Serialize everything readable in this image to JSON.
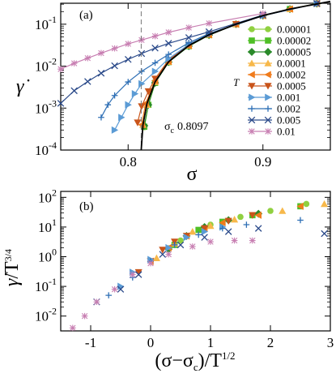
{
  "chart_data": [
    {
      "panel_label": "(a)",
      "type": "line",
      "xlabel": "σ",
      "ylabel": "γ̇",
      "xlim": [
        0.75,
        0.95
      ],
      "ylim_log10": [
        -4,
        -0.5
      ],
      "log_y": true,
      "x_ticks": [
        0.8,
        0.9
      ],
      "x_tick_labels": [
        "0.8",
        "0.9"
      ],
      "y_ticks_log10": [
        -4,
        -3,
        -2,
        -1
      ],
      "y_tick_labels": [
        "10^-4",
        "10^-3",
        "10^-2",
        "10^-1"
      ],
      "legend_title": "T",
      "legend_position": "right",
      "annotation": {
        "prefix": "σ",
        "subscript": "c",
        "value": "0.8097"
      },
      "critical_sigma": 0.8097,
      "series": [
        {
          "name": "0.00001",
          "color": "#90d040",
          "marker": "circle",
          "x": [
            0.812,
            0.815,
            0.82,
            0.83,
            0.845,
            0.86,
            0.88,
            0.9,
            0.92,
            0.94
          ],
          "y": [
            0.00035,
            0.0012,
            0.004,
            0.0125,
            0.03,
            0.055,
            0.1,
            0.16,
            0.23,
            0.31
          ]
        },
        {
          "name": "0.00002",
          "color": "#4fbf26",
          "marker": "square",
          "x": [
            0.812,
            0.815,
            0.82,
            0.83,
            0.845,
            0.86,
            0.88,
            0.9,
            0.92,
            0.94
          ],
          "y": [
            0.00036,
            0.0012,
            0.004,
            0.0125,
            0.03,
            0.055,
            0.1,
            0.16,
            0.23,
            0.31
          ]
        },
        {
          "name": "0.00005",
          "color": "#2a8a2a",
          "marker": "diamond",
          "x": [
            0.812,
            0.815,
            0.82,
            0.83,
            0.845,
            0.86,
            0.88,
            0.9,
            0.92,
            0.94
          ],
          "y": [
            0.00038,
            0.0012,
            0.004,
            0.0125,
            0.03,
            0.055,
            0.1,
            0.16,
            0.23,
            0.31
          ]
        },
        {
          "name": "0.0001",
          "color": "#f7b84a",
          "marker": "triangle-up",
          "x": [
            0.811,
            0.814,
            0.82,
            0.83,
            0.845,
            0.86,
            0.88,
            0.9,
            0.92,
            0.94
          ],
          "y": [
            0.0004,
            0.0012,
            0.0042,
            0.0128,
            0.031,
            0.056,
            0.1,
            0.16,
            0.23,
            0.31
          ]
        },
        {
          "name": "0.0002",
          "color": "#f07b1c",
          "marker": "triangle-left",
          "x": [
            0.81,
            0.813,
            0.82,
            0.83,
            0.845,
            0.86,
            0.88,
            0.9,
            0.92,
            0.94
          ],
          "y": [
            0.0004,
            0.0013,
            0.0045,
            0.013,
            0.031,
            0.056,
            0.1,
            0.16,
            0.23,
            0.31
          ]
        },
        {
          "name": "0.0005",
          "color": "#c9541a",
          "marker": "triangle-down",
          "x": [
            0.807,
            0.81,
            0.815,
            0.82,
            0.83,
            0.845,
            0.86,
            0.88,
            0.9,
            0.94
          ],
          "y": [
            0.00045,
            0.0011,
            0.0025,
            0.005,
            0.014,
            0.032,
            0.057,
            0.1,
            0.16,
            0.31
          ]
        },
        {
          "name": "0.001",
          "color": "#5b9bd5",
          "marker": "triangle-right",
          "x": [
            0.79,
            0.795,
            0.8,
            0.805,
            0.81,
            0.82,
            0.83,
            0.845,
            0.86,
            0.9,
            0.94
          ],
          "y": [
            0.0003,
            0.0006,
            0.0012,
            0.0022,
            0.0038,
            0.0075,
            0.015,
            0.033,
            0.058,
            0.16,
            0.31
          ]
        },
        {
          "name": "0.002",
          "color": "#2e6fb5",
          "marker": "plus",
          "x": [
            0.78,
            0.785,
            0.79,
            0.8,
            0.81,
            0.82,
            0.83,
            0.845,
            0.86,
            0.9,
            0.94
          ],
          "y": [
            0.0006,
            0.0012,
            0.002,
            0.0042,
            0.0075,
            0.012,
            0.019,
            0.036,
            0.06,
            0.16,
            0.31
          ]
        },
        {
          "name": "0.005",
          "color": "#2b4a8a",
          "marker": "cross",
          "x": [
            0.75,
            0.76,
            0.77,
            0.78,
            0.79,
            0.8,
            0.81,
            0.82,
            0.83,
            0.845,
            0.86,
            0.9,
            0.94
          ],
          "y": [
            0.0013,
            0.0026,
            0.0043,
            0.0068,
            0.0102,
            0.0145,
            0.02,
            0.027,
            0.035,
            0.048,
            0.066,
            0.165,
            0.31
          ]
        },
        {
          "name": "0.01",
          "color": "#c87fb2",
          "marker": "star",
          "x": [
            0.75,
            0.76,
            0.77,
            0.78,
            0.79,
            0.8,
            0.81,
            0.82,
            0.83,
            0.845,
            0.86,
            0.9,
            0.94
          ],
          "y": [
            0.0085,
            0.0117,
            0.0155,
            0.0205,
            0.0265,
            0.034,
            0.042,
            0.052,
            0.064,
            0.083,
            0.105,
            0.18,
            0.32
          ]
        }
      ],
      "fit_curve": {
        "name": "",
        "color": "#000000",
        "x": [
          0.8097,
          0.811,
          0.814,
          0.82,
          0.83,
          0.845,
          0.86,
          0.88,
          0.9,
          0.92,
          0.95
        ],
        "y": [
          0.0001,
          0.0004,
          0.0013,
          0.0042,
          0.0127,
          0.031,
          0.056,
          0.1,
          0.16,
          0.23,
          0.35
        ]
      }
    },
    {
      "panel_label": "(b)",
      "type": "scatter",
      "xlabel": "(σ−σc)/T^1/2",
      "ylabel": "γ̇/T^3/4",
      "xlim": [
        -1.5,
        3
      ],
      "ylim_log10": [
        -2.5,
        2.2
      ],
      "log_y": true,
      "x_ticks": [
        -1,
        0,
        1,
        2,
        3
      ],
      "x_tick_labels": [
        "-1",
        "0",
        "1",
        "2",
        "3"
      ],
      "y_ticks_log10": [
        -2,
        -1,
        0,
        1,
        2
      ],
      "y_tick_labels": [
        "10^-2",
        "10^-1",
        "10^0",
        "10^1",
        "10^2"
      ],
      "series": [
        {
          "name": "0.00001",
          "color": "#90d040",
          "marker": "circle",
          "x": [
            0.5,
            1.0,
            1.5,
            2.0,
            2.6
          ],
          "y": [
            3.5,
            12,
            22,
            35,
            60
          ]
        },
        {
          "name": "0.00002",
          "color": "#4fbf26",
          "marker": "square",
          "x": [
            0.4,
            0.8,
            1.2,
            1.7,
            2.5
          ],
          "y": [
            2.5,
            8,
            15,
            25,
            50
          ]
        },
        {
          "name": "0.00005",
          "color": "#2a8a2a",
          "marker": "diamond",
          "x": [
            0.3,
            0.6,
            0.9,
            1.3,
            1.8
          ],
          "y": [
            1.8,
            5,
            10,
            17,
            28
          ]
        },
        {
          "name": "0.0001",
          "color": "#f7b84a",
          "marker": "triangle-up",
          "x": [
            0.1,
            0.4,
            0.7,
            1.0,
            1.4,
            2.2,
            2.9
          ],
          "y": [
            0.9,
            2.8,
            7,
            11,
            18,
            35,
            60
          ]
        },
        {
          "name": "0.0002",
          "color": "#f07b1c",
          "marker": "triangle-left",
          "x": [
            0.0,
            0.3,
            0.6,
            0.9,
            1.2,
            1.8,
            2.5
          ],
          "y": [
            0.7,
            2,
            5,
            9,
            14,
            25,
            50
          ]
        },
        {
          "name": "0.0005",
          "color": "#c9541a",
          "marker": "triangle-down",
          "x": [
            -0.2,
            0.0,
            0.2,
            0.4,
            0.6,
            0.9,
            1.3,
            1.7
          ],
          "y": [
            0.3,
            0.7,
            1.7,
            3.2,
            5,
            9,
            16,
            25
          ]
        },
        {
          "name": "0.001",
          "color": "#5b9bd5",
          "marker": "triangle-right",
          "x": [
            -0.5,
            -0.3,
            0.0,
            0.3,
            0.6,
            0.9,
            1.2
          ],
          "y": [
            0.1,
            0.3,
            0.8,
            2,
            4.5,
            7,
            10
          ]
        },
        {
          "name": "0.002",
          "color": "#2e6fb5",
          "marker": "plus",
          "x": [
            -0.7,
            -0.3,
            0.0,
            0.4,
            0.8,
            1.2,
            1.6,
            2.5
          ],
          "y": [
            0.05,
            0.2,
            0.7,
            2.5,
            5.5,
            9,
            12,
            17
          ]
        },
        {
          "name": "0.005",
          "color": "#2b4a8a",
          "marker": "cross",
          "x": [
            -0.9,
            -0.5,
            -0.2,
            0.2,
            0.5,
            0.9,
            1.3,
            1.8,
            2.9
          ],
          "y": [
            0.03,
            0.08,
            0.25,
            1.2,
            2.5,
            4.5,
            7,
            9,
            6
          ]
        },
        {
          "name": "0.01",
          "color": "#c87fb2",
          "marker": "star",
          "x": [
            -1.3,
            -1.1,
            -0.9,
            -0.6,
            -0.3,
            0.0,
            0.3,
            0.7,
            1.0,
            1.4,
            1.7
          ],
          "y": [
            0.004,
            0.01,
            0.03,
            0.08,
            0.25,
            0.6,
            1.2,
            2.2,
            3.2,
            3.5,
            3.5
          ]
        }
      ]
    }
  ]
}
